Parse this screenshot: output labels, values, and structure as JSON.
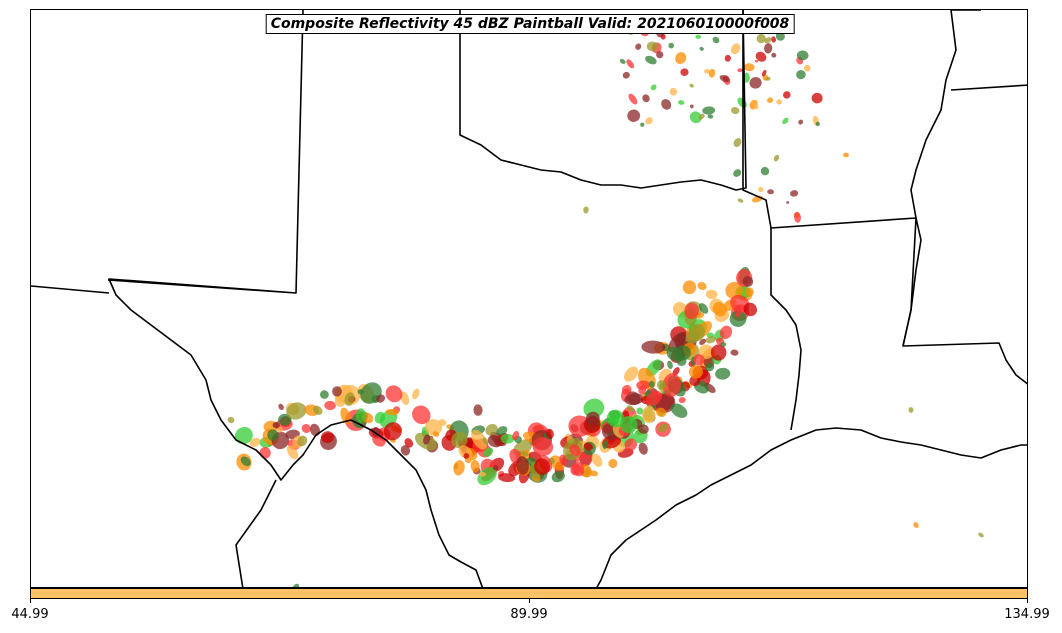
{
  "title": "Composite Reflectivity 45 dBZ Paintball Valid: 202106010000f008",
  "colors": {
    "border": "#000000",
    "colorbar": "#ffc266",
    "paint_red": "#ff3333",
    "paint_orange": "#ff8c00",
    "paint_light_orange": "#ffb347",
    "paint_green": "#33cc33",
    "paint_dark_green": "#2e7d32",
    "paint_olive": "#9a9a2a",
    "paint_maroon": "#8b2525",
    "paint_dark_red": "#cc0000"
  },
  "colorbar": {
    "ticks": [
      "44.99",
      "89.99",
      "134.99"
    ]
  }
}
